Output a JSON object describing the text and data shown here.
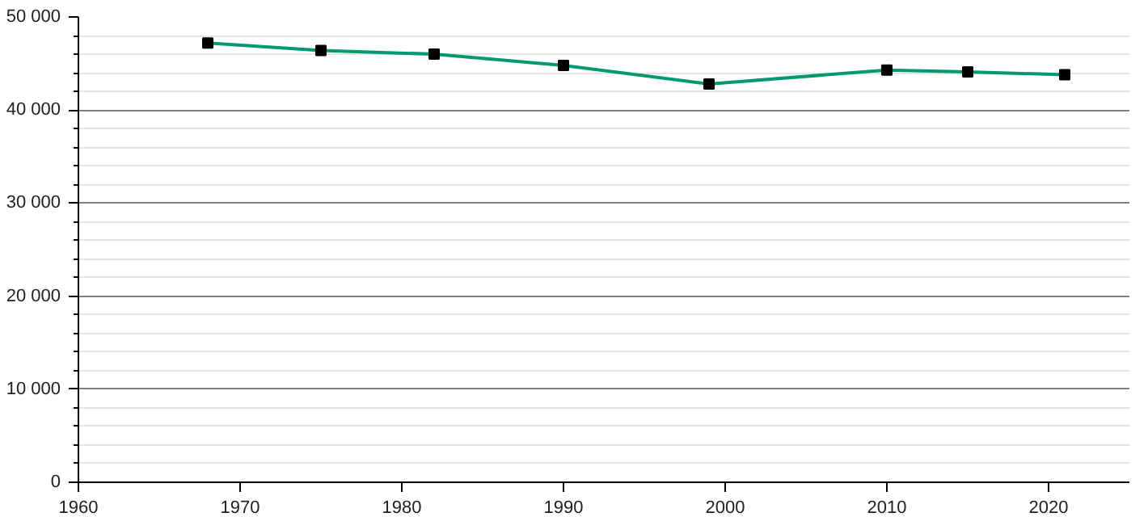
{
  "chart_data": {
    "type": "line",
    "x": [
      1968,
      1975,
      1982,
      1990,
      1999,
      2010,
      2015,
      2021
    ],
    "series": [
      {
        "color": "#009970",
        "values": [
          47200,
          46400,
          46000,
          44800,
          42800,
          44300,
          44100,
          43800
        ]
      }
    ],
    "xlim": [
      1960,
      2025
    ],
    "xticks": [
      1960,
      1970,
      1980,
      1990,
      2000,
      2010,
      2020
    ],
    "ylim": [
      0,
      50000
    ],
    "yticks": [
      {
        "value": 0,
        "label": "0"
      },
      {
        "value": 2000,
        "label": null
      },
      {
        "value": 4000,
        "label": null
      },
      {
        "value": 6000,
        "label": null
      },
      {
        "value": 8000,
        "label": null
      },
      {
        "value": 10000,
        "label": "10 000"
      },
      {
        "value": 12000,
        "label": null
      },
      {
        "value": 14000,
        "label": null
      },
      {
        "value": 16000,
        "label": null
      },
      {
        "value": 18000,
        "label": null
      },
      {
        "value": 20000,
        "label": "20 000"
      },
      {
        "value": 22000,
        "label": null
      },
      {
        "value": 24000,
        "label": null
      },
      {
        "value": 26000,
        "label": null
      },
      {
        "value": 28000,
        "label": null
      },
      {
        "value": 30000,
        "label": "30 000"
      },
      {
        "value": 32000,
        "label": null
      },
      {
        "value": 34000,
        "label": null
      },
      {
        "value": 36000,
        "label": null
      },
      {
        "value": 38000,
        "label": null
      },
      {
        "value": 40000,
        "label": "40 000"
      },
      {
        "value": 42000,
        "label": null
      },
      {
        "value": 44000,
        "label": null
      },
      {
        "value": 46000,
        "label": null
      },
      {
        "value": 48000,
        "label": null
      },
      {
        "value": 50000,
        "label": "50 000"
      }
    ],
    "grid": "y",
    "marker": "square",
    "line_style": "solid"
  }
}
